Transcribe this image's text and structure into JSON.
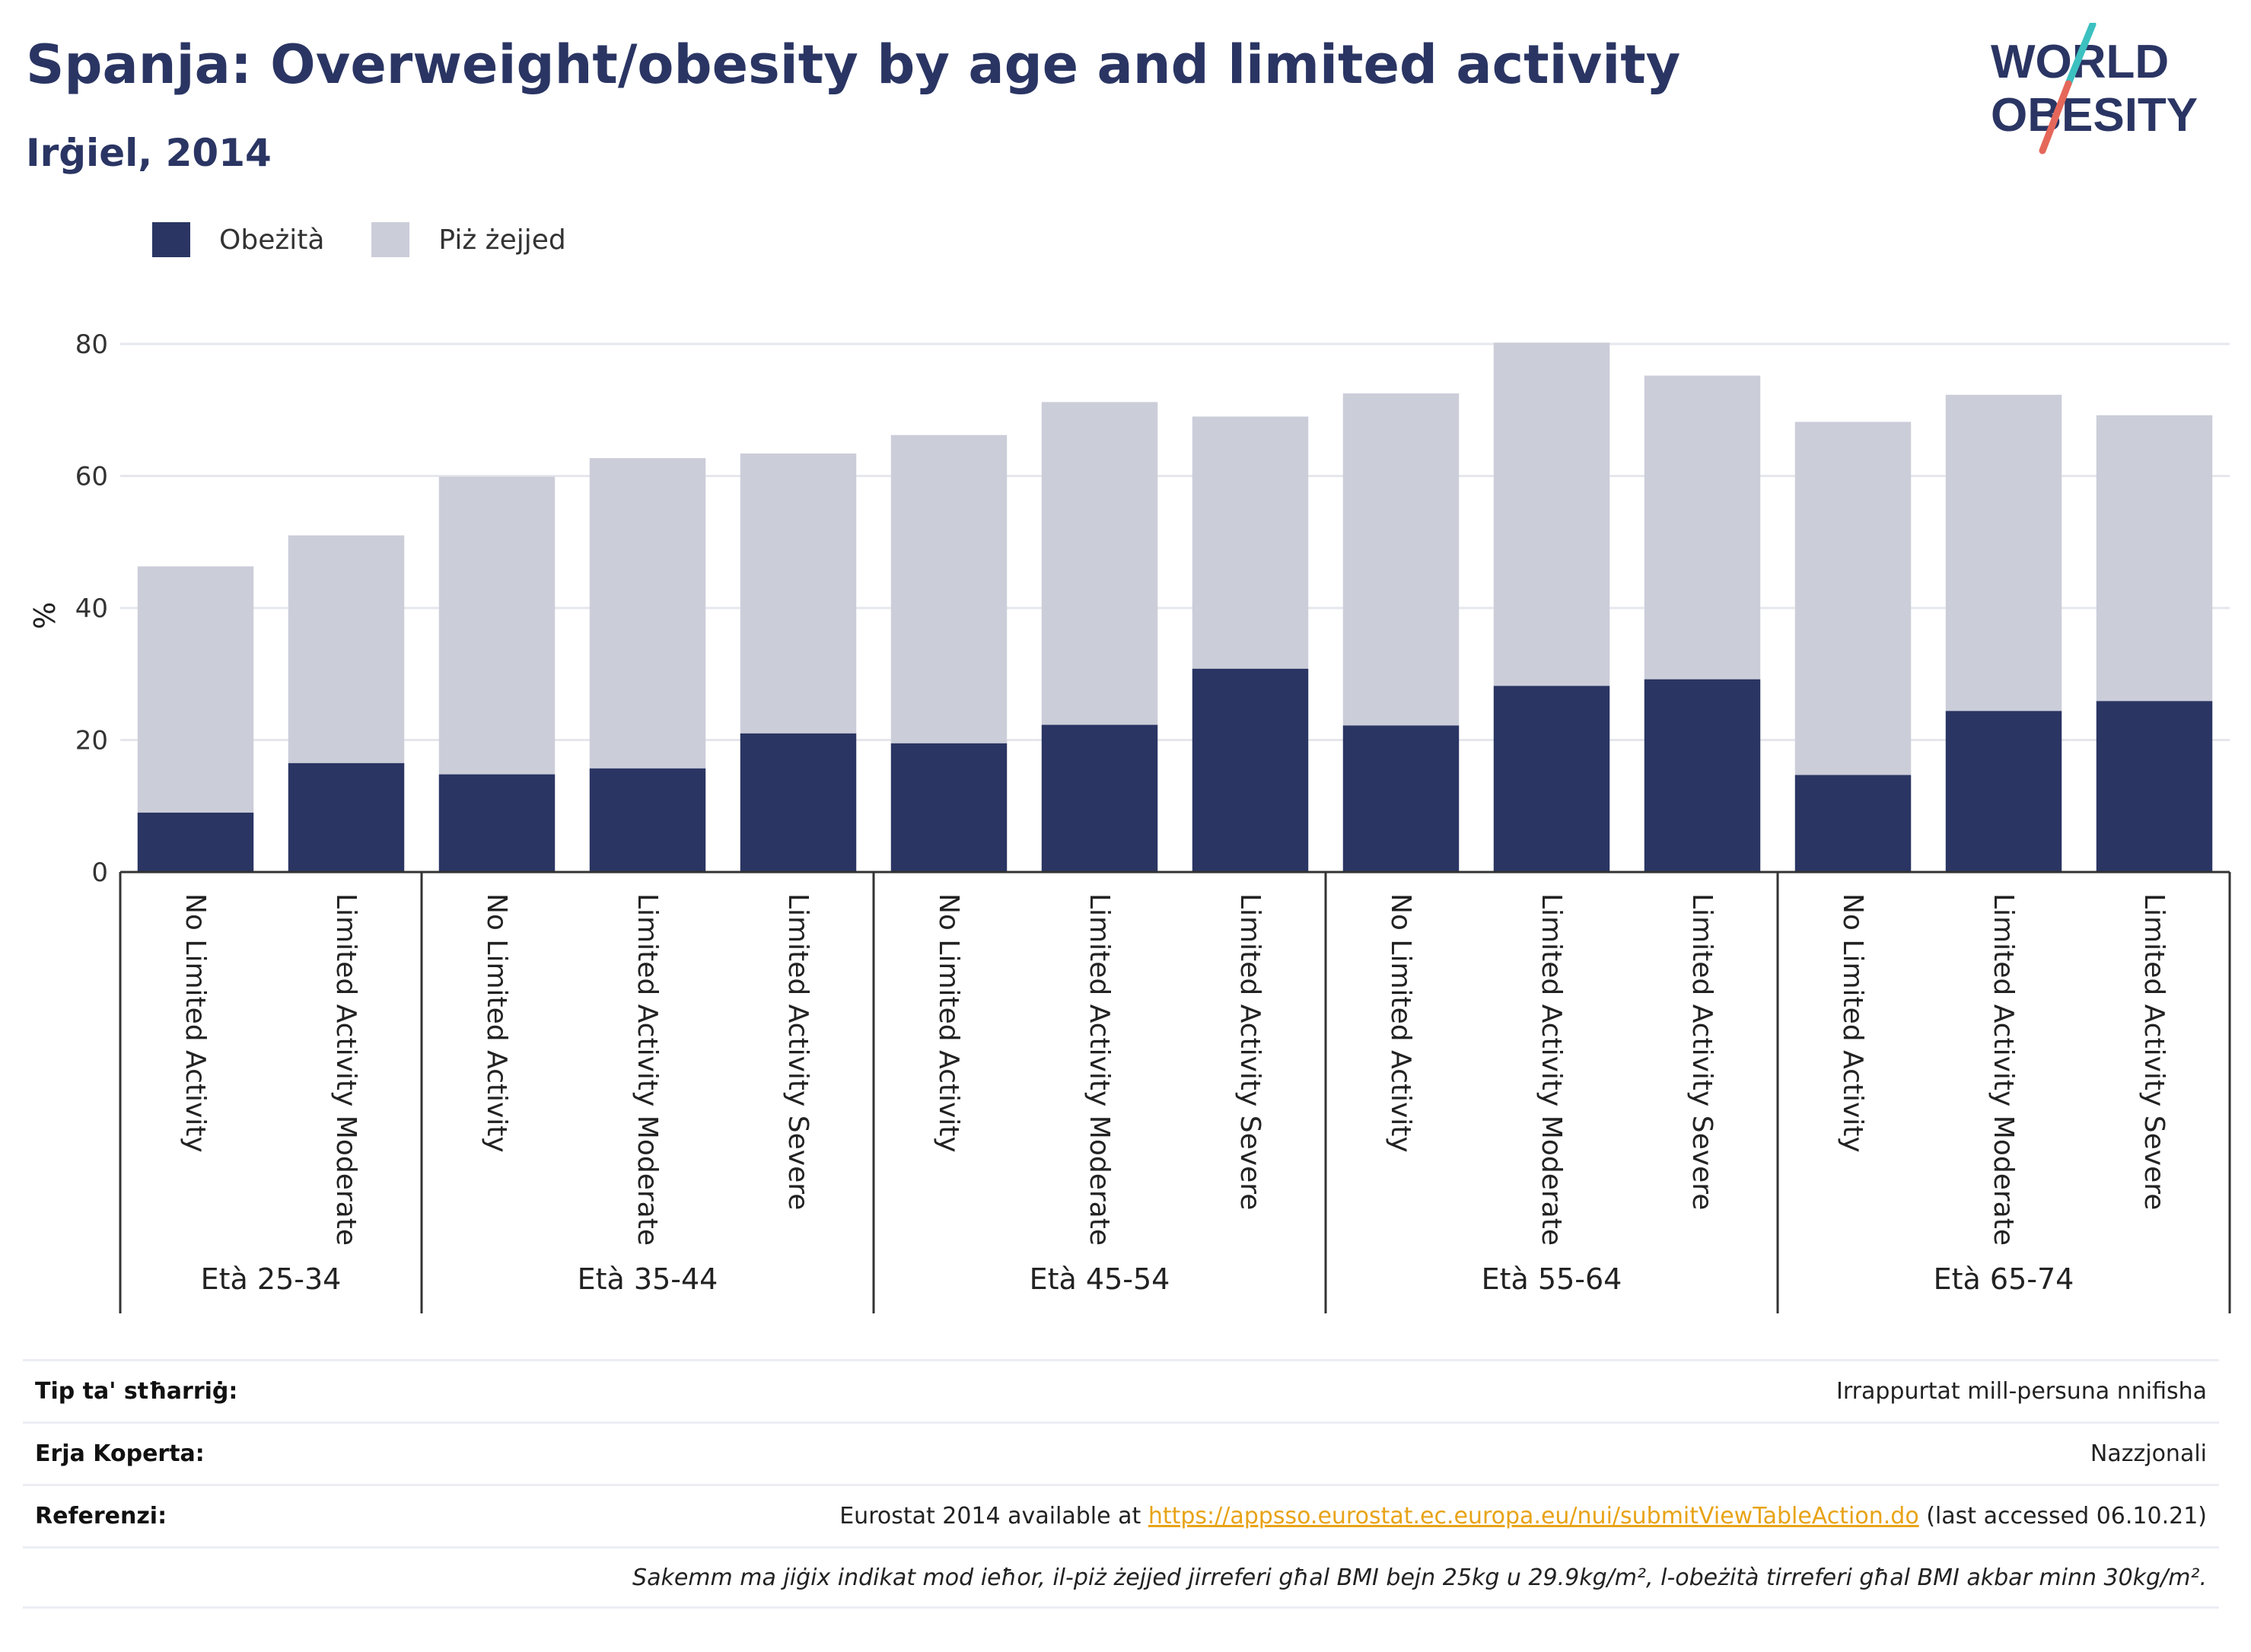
{
  "title": "Spanja: Overweight/obesity by age and limited activity",
  "subtitle": "Irġiel, 2014",
  "logo": {
    "line1": "WORLD",
    "line2": "OBESITY"
  },
  "colors": {
    "obese": "#2a3563",
    "overweight": "#cbcdd9",
    "title": "#2a3563",
    "link": "#e8a317",
    "accent_slash_top": "#3cc0c0",
    "accent_slash_bottom": "#e5675a"
  },
  "legend": {
    "obese_label": "Obeżità",
    "overweight_label": "Piż żejjed",
    "position": "top-left"
  },
  "chart_data": {
    "type": "bar",
    "stacked": true,
    "ylabel": "%",
    "ylim": [
      0,
      80
    ],
    "yticks": [
      0,
      20,
      40,
      60,
      80
    ],
    "grid": true,
    "groups": [
      {
        "label": "Età 25-34",
        "categories": [
          "No Limited Activity",
          "Limited Activity Moderate"
        ]
      },
      {
        "label": "Età 35-44",
        "categories": [
          "No Limited Activity",
          "Limited Activity Moderate",
          "Limited Activity Severe"
        ]
      },
      {
        "label": "Età 45-54",
        "categories": [
          "No Limited Activity",
          "Limited Activity Moderate",
          "Limited Activity Severe"
        ]
      },
      {
        "label": "Età 55-64",
        "categories": [
          "No Limited Activity",
          "Limited Activity Moderate",
          "Limited Activity Severe"
        ]
      },
      {
        "label": "Età 65-74",
        "categories": [
          "No Limited Activity",
          "Limited Activity Moderate",
          "Limited Activity Severe"
        ]
      }
    ],
    "series": [
      {
        "name": "Obeżità",
        "values": [
          9,
          16.5,
          14.8,
          15.7,
          21,
          19.5,
          22.3,
          30.8,
          22.2,
          28.2,
          29.2,
          14.7,
          24.4,
          25.9
        ]
      },
      {
        "name": "Piż żejjed",
        "values": [
          37.3,
          34.5,
          45.1,
          47,
          42.4,
          46.7,
          48.9,
          38.2,
          50.3,
          52,
          46,
          53.5,
          47.9,
          43.3
        ]
      }
    ]
  },
  "meta": {
    "measure_key": "Tip ta' stħarriġ:",
    "measure_val": "Irrappurtat mill-persuna nnifisha",
    "coverage_key": "Erja Koperta:",
    "coverage_val": "Nazzjonali",
    "ref_key": "Referenzi:",
    "ref_prefix": "Eurostat 2014 available at ",
    "ref_link": "https://appsso.eurostat.ec.europa.eu/nui/submitViewTableAction.do",
    "ref_suffix": " (last accessed 06.10.21)",
    "note": "Sakemm ma jiġix indikat mod ieħor, il-piż żejjed jirreferi għal BMI bejn 25kg u 29.9kg/m², l-obeżità tirreferi għal BMI akbar minn 30kg/m²."
  }
}
